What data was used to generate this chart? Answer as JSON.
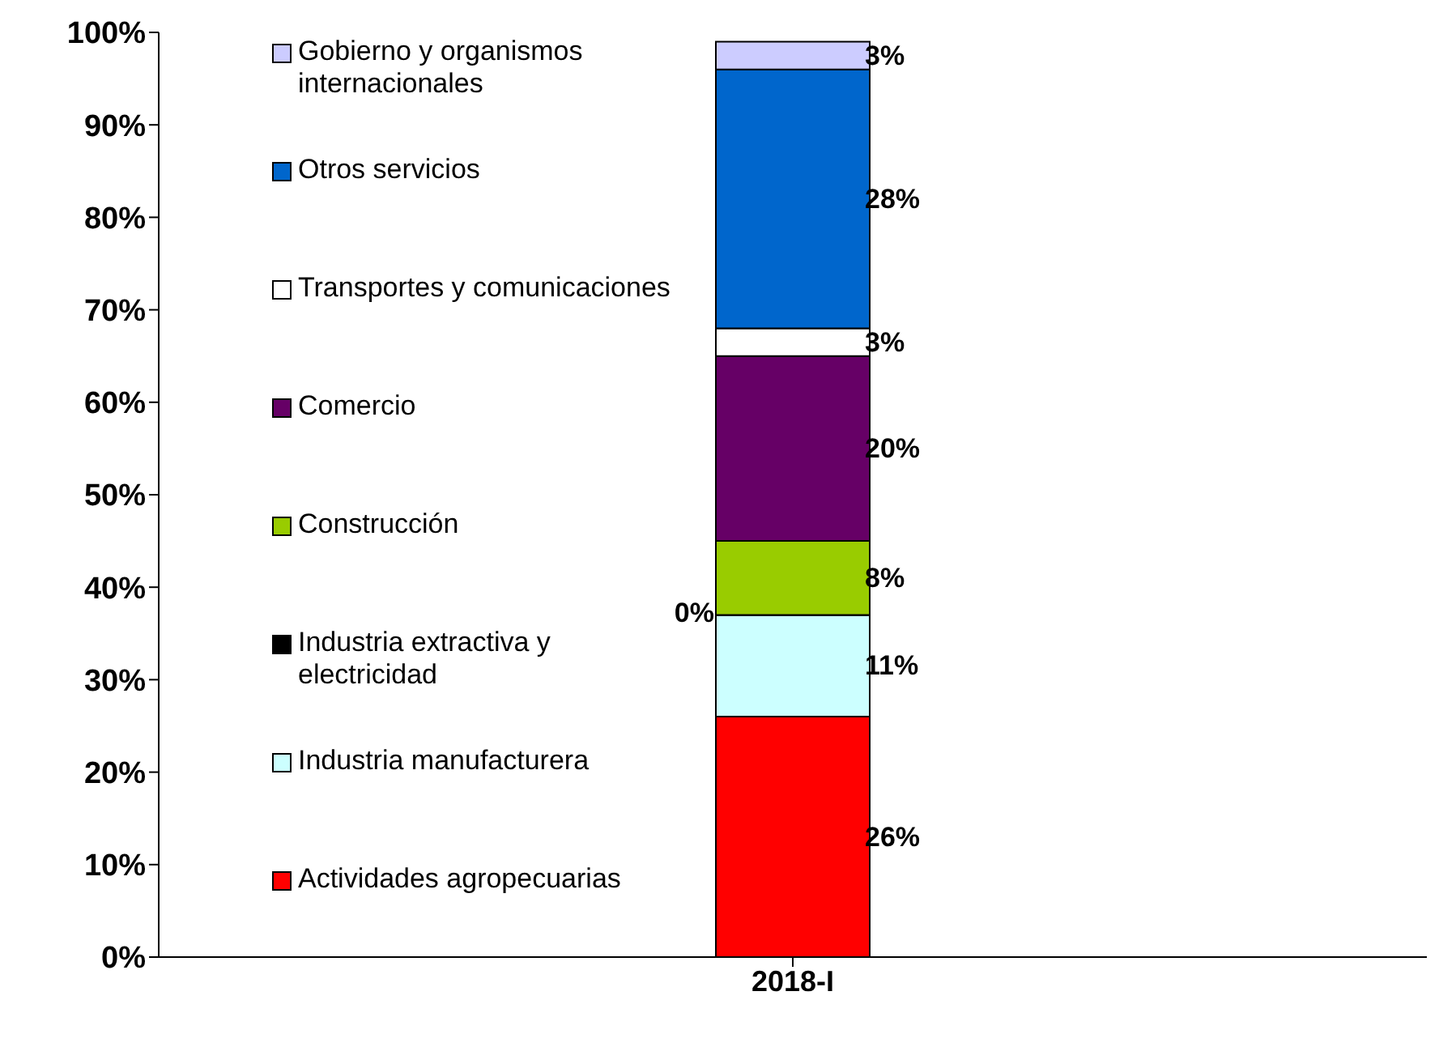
{
  "chart_data": {
    "type": "bar",
    "stacked": true,
    "categories": [
      "2018-I"
    ],
    "series": [
      {
        "name": "Actividades agropecuarias",
        "color": "#ff0000",
        "values": [
          26
        ],
        "value_labels": [
          "26%"
        ]
      },
      {
        "name": "Industria manufacturera",
        "color": "#ccffff",
        "values": [
          11
        ],
        "value_labels": [
          "11%"
        ]
      },
      {
        "name": "Industria extractiva y electricidad",
        "color": "#000000",
        "values": [
          0
        ],
        "value_labels": [
          "0%"
        ]
      },
      {
        "name": "Construcción",
        "color": "#99cc00",
        "values": [
          8
        ],
        "value_labels": [
          "8%"
        ]
      },
      {
        "name": "Comercio",
        "color": "#660066",
        "values": [
          20
        ],
        "value_labels": [
          "20%"
        ]
      },
      {
        "name": "Transportes y comunicaciones",
        "color": "#ffffff",
        "values": [
          3
        ],
        "value_labels": [
          "3%"
        ]
      },
      {
        "name": "Otros servicios",
        "color": "#0066cc",
        "values": [
          28
        ],
        "value_labels": [
          "28%"
        ]
      },
      {
        "name": "Gobierno y organismos internacionales",
        "color": "#ccccff",
        "values": [
          3
        ],
        "value_labels": [
          "3%"
        ]
      }
    ],
    "ylim": [
      0,
      100
    ],
    "yticks": [
      {
        "value": 0,
        "label": "0%"
      },
      {
        "value": 10,
        "label": "10%"
      },
      {
        "value": 20,
        "label": "20%"
      },
      {
        "value": 30,
        "label": "30%"
      },
      {
        "value": 40,
        "label": "40%"
      },
      {
        "value": 50,
        "label": "50%"
      },
      {
        "value": 60,
        "label": "60%"
      },
      {
        "value": 70,
        "label": "70%"
      },
      {
        "value": 80,
        "label": "80%"
      },
      {
        "value": 90,
        "label": "90%"
      },
      {
        "value": 100,
        "label": "100%"
      }
    ],
    "legend": "left",
    "grid": false
  }
}
